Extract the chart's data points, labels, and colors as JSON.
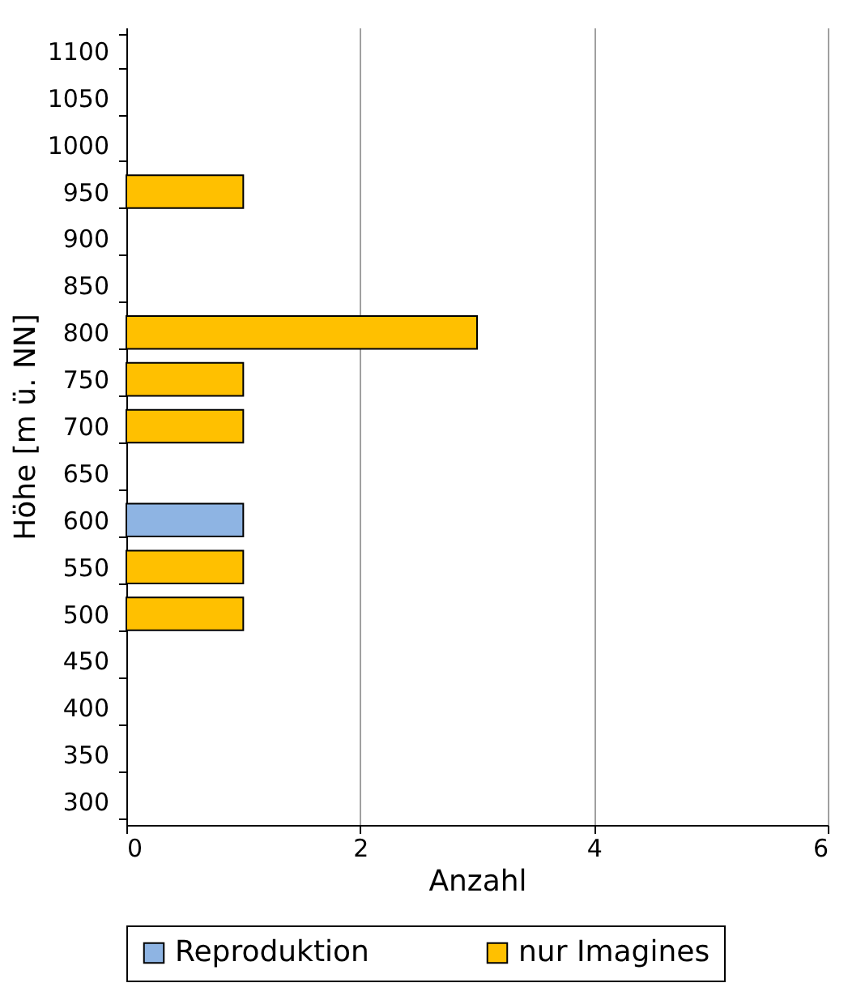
{
  "chart_data": {
    "type": "bar",
    "orientation": "horizontal",
    "xlabel": "Anzahl",
    "ylabel": "Höhe [m ü. NN]",
    "categories": [
      "1100",
      "1050",
      "1000",
      "950",
      "900",
      "850",
      "800",
      "750",
      "700",
      "650",
      "600",
      "550",
      "500",
      "450",
      "400",
      "350",
      "300"
    ],
    "series": [
      {
        "name": "Reproduktion",
        "color": "#8eb4e3",
        "values": [
          null,
          null,
          null,
          null,
          null,
          null,
          null,
          null,
          null,
          null,
          1,
          null,
          null,
          null,
          null,
          null,
          null
        ]
      },
      {
        "name": "nur Imagines",
        "color": "#ffc000",
        "values": [
          null,
          null,
          null,
          1,
          null,
          null,
          3,
          1,
          1,
          null,
          null,
          1,
          1,
          null,
          null,
          null,
          null
        ]
      }
    ],
    "xlim": [
      0,
      6
    ],
    "xticks": [
      0,
      2,
      4,
      6
    ],
    "grid": "x",
    "legend": "bottom"
  }
}
